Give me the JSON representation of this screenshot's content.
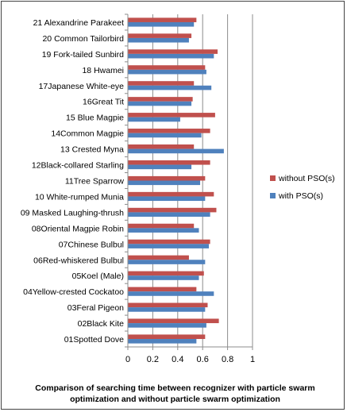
{
  "chart_data": {
    "type": "bar",
    "orientation": "horizontal",
    "categories": [
      "21 Alexandrine Parakeet",
      "20 Common Tailorbird",
      "19 Fork-tailed Sunbird",
      "18 Hwamei",
      "17Japanese White-eye",
      "16Great Tit",
      "15 Blue Magpie",
      "14Common Magpie",
      "13 Crested  Myna",
      "12Black-collared Starling",
      "11Tree Sparrow",
      "10 White-rumped Munia",
      "09 Masked Laughing-thrush",
      "08Oriental Magpie Robin",
      "07Chinese Bulbul",
      "06Red-whiskered Bulbul",
      "05Koel (Male)",
      "04Yellow-crested Cockatoo",
      "03Feral Pigeon",
      "02Black Kite",
      "01Spotted Dove"
    ],
    "series": [
      {
        "name": "without PSO(s)",
        "color": "#c0504d",
        "values": [
          0.55,
          0.51,
          0.72,
          0.62,
          0.53,
          0.52,
          0.7,
          0.66,
          0.53,
          0.66,
          0.62,
          0.69,
          0.71,
          0.53,
          0.66,
          0.49,
          0.61,
          0.55,
          0.64,
          0.73,
          0.62
        ]
      },
      {
        "name": "with PSO(s)",
        "color": "#4f81bd",
        "values": [
          0.53,
          0.49,
          0.69,
          0.63,
          0.67,
          0.51,
          0.42,
          0.59,
          0.77,
          0.51,
          0.58,
          0.62,
          0.66,
          0.57,
          0.65,
          0.62,
          0.57,
          0.69,
          0.62,
          0.63,
          0.55
        ]
      }
    ],
    "xlim": [
      0,
      1
    ],
    "xticks": [
      "0",
      "0.2",
      "0.4",
      "0.6",
      "0.8",
      "1"
    ],
    "grid": true,
    "legend_position": "right"
  },
  "caption": {
    "line1": "Comparison of searching time between recognizer with particle swarm",
    "line2": "optimization and without particle swarm optimization"
  }
}
